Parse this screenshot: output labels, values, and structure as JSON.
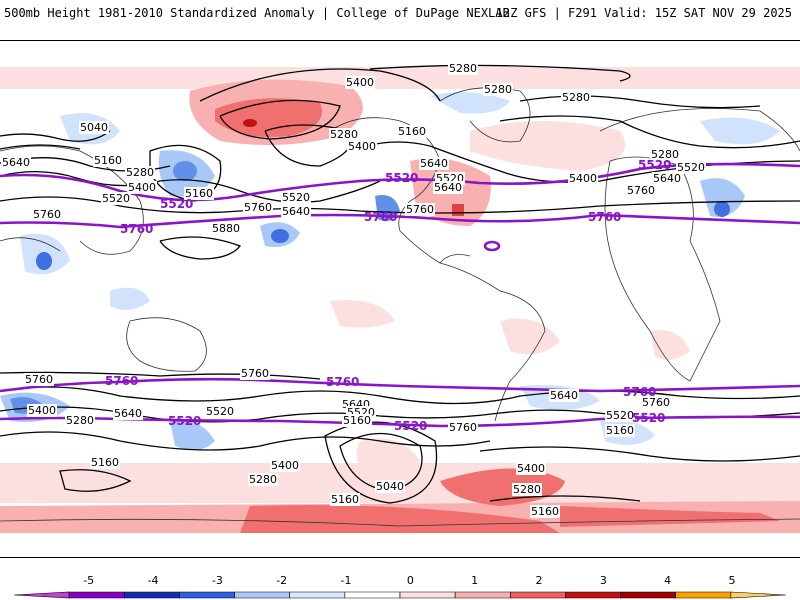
{
  "header": {
    "title_left": "500mb Height 1981-2010 Standardized Anomaly | College of DuPage NEXLAB",
    "title_right": "12Z GFS | F291 Valid: 15Z SAT NOV 29 2025"
  },
  "map": {
    "projection": "cylindrical-equidistant",
    "contour_labels": [
      {
        "id": "c1",
        "text": "5280"
      },
      {
        "id": "c2",
        "text": "5400"
      },
      {
        "id": "c3",
        "text": "5280"
      },
      {
        "id": "c4",
        "text": "5280"
      },
      {
        "id": "c5",
        "text": "5040"
      },
      {
        "id": "c6",
        "text": "5160"
      },
      {
        "id": "c7",
        "text": "5280"
      },
      {
        "id": "c8",
        "text": "5400"
      },
      {
        "id": "c9",
        "text": "5520"
      },
      {
        "id": "c10",
        "text": "5640"
      },
      {
        "id": "c11",
        "text": "5160"
      },
      {
        "id": "c12",
        "text": "5280"
      },
      {
        "id": "c13",
        "text": "5160"
      },
      {
        "id": "c14",
        "text": "5400"
      },
      {
        "id": "c15",
        "text": "5520"
      },
      {
        "id": "c16",
        "text": "5640"
      },
      {
        "id": "c17",
        "text": "5760"
      },
      {
        "id": "c18",
        "text": "5880"
      },
      {
        "id": "c19",
        "text": "5760"
      },
      {
        "id": "c20",
        "text": "5640"
      },
      {
        "id": "c21",
        "text": "5520"
      },
      {
        "id": "c22",
        "text": "5280"
      },
      {
        "id": "c23",
        "text": "5520"
      },
      {
        "id": "c24",
        "text": "5400"
      },
      {
        "id": "c25",
        "text": "5640"
      },
      {
        "id": "c26",
        "text": "5760"
      },
      {
        "id": "c27",
        "text": "5760"
      },
      {
        "id": "c28",
        "text": "5760"
      },
      {
        "id": "c29",
        "text": "5400"
      },
      {
        "id": "c30",
        "text": "5280"
      },
      {
        "id": "c31",
        "text": "5640"
      },
      {
        "id": "c32",
        "text": "5520"
      },
      {
        "id": "c33",
        "text": "5160"
      },
      {
        "id": "c34",
        "text": "5400"
      },
      {
        "id": "c35",
        "text": "5280"
      },
      {
        "id": "c36",
        "text": "5640"
      },
      {
        "id": "c37",
        "text": "5520"
      },
      {
        "id": "c38",
        "text": "5160"
      },
      {
        "id": "c39",
        "text": "5040"
      },
      {
        "id": "c40",
        "text": "5160"
      },
      {
        "id": "c41",
        "text": "5760"
      },
      {
        "id": "c42",
        "text": "5400"
      },
      {
        "id": "c43",
        "text": "5280"
      },
      {
        "id": "c44",
        "text": "5160"
      },
      {
        "id": "c45",
        "text": "5640"
      },
      {
        "id": "c46",
        "text": "5520"
      },
      {
        "id": "c47",
        "text": "5760"
      },
      {
        "id": "c48",
        "text": "5160"
      },
      {
        "id": "c49",
        "text": "5640"
      },
      {
        "id": "c50",
        "text": "5760"
      }
    ],
    "highlight_labels": [
      {
        "id": "p1",
        "text": "5520"
      },
      {
        "id": "p2",
        "text": "5760"
      },
      {
        "id": "p3",
        "text": "5520"
      },
      {
        "id": "p4",
        "text": "5760"
      },
      {
        "id": "p5",
        "text": "5760"
      },
      {
        "id": "p6",
        "text": "5520"
      },
      {
        "id": "p7",
        "text": "5760"
      },
      {
        "id": "p8",
        "text": "5760"
      },
      {
        "id": "p9",
        "text": "5760"
      },
      {
        "id": "p10",
        "text": "5520"
      },
      {
        "id": "p11",
        "text": "5520"
      },
      {
        "id": "p12",
        "text": "5520"
      }
    ],
    "colors": {
      "contour": "#000000",
      "highlight_contour": "#8a14c8",
      "coastline": "#333333"
    }
  },
  "legend": {
    "ticks": [
      "-5",
      "-4",
      "-3",
      "-2",
      "-1",
      "0",
      "1",
      "2",
      "3",
      "4",
      "5"
    ],
    "colors": [
      "#c040d8",
      "#8a00c0",
      "#1030b0",
      "#3060e0",
      "#a8c8f8",
      "#d8e8fc",
      "#ffffff",
      "#fce0e0",
      "#f8b0b0",
      "#f06060",
      "#c01010",
      "#a00000",
      "#ffa000",
      "#ffd060"
    ]
  }
}
